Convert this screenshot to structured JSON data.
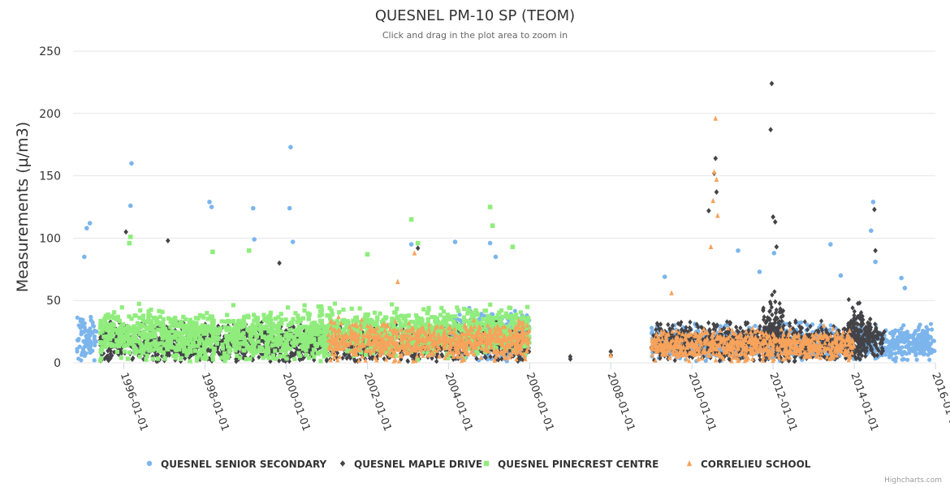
{
  "chart_data": {
    "type": "scatter",
    "title": "QUESNEL PM-10 SP (TEOM)",
    "subtitle": "Click and drag in the plot area to zoom in",
    "xlabel": "",
    "ylabel": "Measurements (µ/m3)",
    "ylim": [
      0,
      250
    ],
    "yticks": [
      "0",
      "50",
      "100",
      "150",
      "200",
      "250"
    ],
    "xlim": [
      "1994-10-01",
      "2016-01-01"
    ],
    "xticks": [
      "1996-01-01",
      "1998-01-01",
      "2000-01-01",
      "2002-01-01",
      "2004-01-01",
      "2006-01-01",
      "2008-01-01",
      "2010-01-01",
      "2012-01-01",
      "2014-01-01",
      "2016-01-01"
    ],
    "grid": true,
    "legend_position": "bottom",
    "series": [
      {
        "name": "QUESNEL SENIOR SECONDARY",
        "color": "#7cb5ec",
        "marker": "circle",
        "ranges": [
          [
            "1994-11-01",
            "1995-05-01",
            18,
            12
          ],
          [
            "2003-12-01",
            "2005-12-31",
            22,
            12
          ],
          [
            "2009-01-01",
            "2015-12-31",
            16,
            9
          ]
        ],
        "peaks": [
          [
            "1995-03-01",
            112
          ],
          [
            "1995-02-01",
            108
          ],
          [
            "1995-01-10",
            85
          ],
          [
            "1996-03-10",
            160
          ],
          [
            "1996-03-01",
            126
          ],
          [
            "1998-02-10",
            129
          ],
          [
            "1998-03-01",
            125
          ],
          [
            "1999-03-10",
            124
          ],
          [
            "1999-03-20",
            99
          ],
          [
            "2000-02-10",
            173
          ],
          [
            "2000-02-01",
            124
          ],
          [
            "2000-03-01",
            97
          ],
          [
            "2003-02-01",
            95
          ],
          [
            "2004-03-01",
            97
          ],
          [
            "2005-01-10",
            96
          ],
          [
            "2005-03-01",
            85
          ],
          [
            "2009-05-01",
            69
          ],
          [
            "2011-02-20",
            90
          ],
          [
            "2011-09-01",
            73
          ],
          [
            "2012-01-10",
            88
          ],
          [
            "2013-06-01",
            95
          ],
          [
            "2013-09-01",
            70
          ],
          [
            "2014-06-20",
            129
          ],
          [
            "2014-06-01",
            106
          ],
          [
            "2014-07-10",
            81
          ],
          [
            "2015-03-01",
            68
          ],
          [
            "2015-04-01",
            60
          ]
        ]
      },
      {
        "name": "QUESNEL MAPLE DRIVE",
        "color": "#434348",
        "marker": "diamond",
        "ranges": [
          [
            "1995-06-01",
            "2005-12-31",
            16,
            10
          ],
          [
            "2009-01-01",
            "2014-10-01",
            17,
            10
          ],
          [
            "2013-11-01",
            "2014-06-01",
            26,
            14
          ],
          [
            "2011-10-01",
            "2012-04-01",
            30,
            16
          ]
        ],
        "peaks": [
          [
            "1996-01-20",
            105
          ],
          [
            "1997-02-01",
            98
          ],
          [
            "1999-11-01",
            80
          ],
          [
            "2003-04-01",
            92
          ],
          [
            "2007-01-01",
            5
          ],
          [
            "2007-01-02",
            3
          ],
          [
            "2008-01-01",
            9
          ],
          [
            "2008-01-02",
            6
          ],
          [
            "2010-08-01",
            164
          ],
          [
            "2010-07-20",
            152
          ],
          [
            "2010-08-10",
            137
          ],
          [
            "2010-06-01",
            122
          ],
          [
            "2011-12-20",
            224
          ],
          [
            "2011-12-10",
            187
          ],
          [
            "2012-01-01",
            117
          ],
          [
            "2012-01-20",
            113
          ],
          [
            "2012-02-01",
            93
          ],
          [
            "2014-07-01",
            123
          ],
          [
            "2014-07-10",
            90
          ]
        ]
      },
      {
        "name": "QUESNEL PINECREST CENTRE",
        "color": "#90ed7d",
        "marker": "square",
        "ranges": [
          [
            "1995-06-01",
            "2001-01-01",
            22,
            14
          ],
          [
            "2001-01-01",
            "2005-12-31",
            25,
            12
          ]
        ],
        "peaks": [
          [
            "1996-03-01",
            101
          ],
          [
            "1996-02-20",
            96
          ],
          [
            "1998-03-10",
            89
          ],
          [
            "1999-02-01",
            90
          ],
          [
            "2002-01-01",
            87
          ],
          [
            "2003-02-01",
            115
          ],
          [
            "2003-04-01",
            96
          ],
          [
            "2005-01-10",
            125
          ],
          [
            "2005-02-01",
            110
          ],
          [
            "2005-08-01",
            93
          ]
        ]
      },
      {
        "name": "CORRELIEU SCHOOL",
        "color": "#f7a35c",
        "marker": "triangle",
        "ranges": [
          [
            "2001-01-01",
            "2005-12-31",
            18,
            10
          ],
          [
            "2009-01-01",
            "2013-12-31",
            14,
            8
          ]
        ],
        "peaks": [
          [
            "2003-03-01",
            88
          ],
          [
            "2002-10-01",
            65
          ],
          [
            "2008-01-01",
            6
          ],
          [
            "2009-07-01",
            56
          ],
          [
            "2010-08-01",
            196
          ],
          [
            "2010-07-20",
            153
          ],
          [
            "2010-08-10",
            147
          ],
          [
            "2010-07-10",
            130
          ],
          [
            "2010-08-20",
            118
          ],
          [
            "2010-06-20",
            93
          ]
        ]
      }
    ]
  },
  "credits": "Highcharts.com"
}
